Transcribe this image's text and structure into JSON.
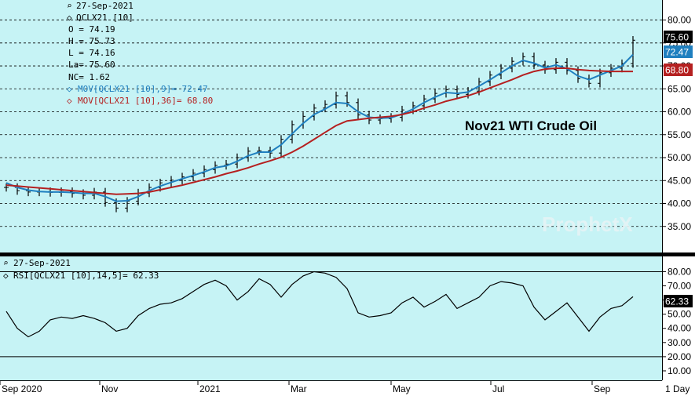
{
  "colors": {
    "panel_bg": "#c6f3f5",
    "price_bar": "#000000",
    "ma_fast": "#1f7fbf",
    "ma_slow": "#b52020",
    "rsi_line": "#000000",
    "last_badge_bg": "#000000",
    "ma_fast_badge_bg": "#1f7fbf",
    "ma_slow_badge_bg": "#b52020"
  },
  "header": {
    "date": "27-Sep-2021",
    "symbol": "QCLX21 [10]",
    "open": "O = 74.19",
    "high": "H = 75.73",
    "low": "L = 74.16",
    "last": "La= 75.60",
    "net_change": "NC= 1.62",
    "ma_fast": "MOV[QCLX21 [10],9]= 72.47",
    "ma_slow": "MOV[QCLX21 [10],36]= 68.80"
  },
  "chart_title": "Nov21 WTI Crude Oil",
  "watermark": "ProphetX",
  "badges": {
    "last": "75.60",
    "ma_fast": "72.47",
    "ma_slow": "68.80"
  },
  "rsi_header": {
    "date": "27-Sep-2021",
    "label": "RSI[QCLX21 [10],14,5]= 62.33"
  },
  "rsi_badge": "62.33",
  "x_axis_labels": [
    "Sep 2020",
    "Nov",
    "2021",
    "Mar",
    "May",
    "Jul",
    "Sep",
    "1 Day"
  ],
  "chart_data": [
    {
      "type": "line",
      "title": "Nov21 WTI Crude Oil",
      "ylim": [
        30,
        83
      ],
      "y_ticks": [
        35,
        40,
        45,
        50,
        55,
        60,
        65,
        70,
        75,
        80
      ],
      "x_months": [
        0,
        1,
        2,
        3,
        4,
        5,
        6,
        7,
        8,
        9,
        10,
        11,
        12,
        13,
        14,
        15,
        16,
        17,
        18,
        19,
        20,
        21,
        22,
        23,
        24,
        25,
        26,
        27,
        28,
        29,
        30,
        31,
        32,
        33,
        34,
        35,
        36,
        37,
        38,
        39,
        40,
        41,
        42,
        43,
        44,
        45,
        46,
        47,
        48,
        49,
        50,
        51,
        52,
        53,
        54,
        55,
        56,
        57
      ],
      "series": [
        {
          "name": "QCLX21 [10]",
          "style": "price_bars",
          "values": [
            43.5,
            42.8,
            42.5,
            42.6,
            42.4,
            42.6,
            42.2,
            41.8,
            42.5,
            40.2,
            39.0,
            40.5,
            42.3,
            43.5,
            44.5,
            45.1,
            45.8,
            46.6,
            47.4,
            48.3,
            48.6,
            50.0,
            51.4,
            51.5,
            51.0,
            54.0,
            57.2,
            59.0,
            60.8,
            61.6,
            63.5,
            62.0,
            59.3,
            58.2,
            58.5,
            58.8,
            60.4,
            61.3,
            62.8,
            64.0,
            64.8,
            63.8,
            64.5,
            66.5,
            68.0,
            69.5,
            71.0,
            72.0,
            70.2,
            69.2,
            70.8,
            69.0,
            67.2,
            66.2,
            68.5,
            69.5,
            70.5,
            75.6
          ]
        },
        {
          "name": "MOV[QCLX21 [10],9]",
          "style": "line",
          "values": [
            44.5,
            43.5,
            42.9,
            42.6,
            42.5,
            42.5,
            42.4,
            42.2,
            42.2,
            41.5,
            40.5,
            40.6,
            41.5,
            42.8,
            43.8,
            44.6,
            45.4,
            46.1,
            46.9,
            47.8,
            48.2,
            49.2,
            50.4,
            51.2,
            51.2,
            52.8,
            55.2,
            57.5,
            59.4,
            60.6,
            62.0,
            61.8,
            60.0,
            58.8,
            58.6,
            58.7,
            59.5,
            60.6,
            62.0,
            63.2,
            64.2,
            64.0,
            64.3,
            65.6,
            67.0,
            68.5,
            70.0,
            71.2,
            70.6,
            69.6,
            70.2,
            69.4,
            67.8,
            67.0,
            68.0,
            69.0,
            70.0,
            72.47
          ]
        },
        {
          "name": "MOV[QCLX21 [10],36]",
          "style": "line",
          "values": [
            44.0,
            43.8,
            43.6,
            43.4,
            43.2,
            43.0,
            42.8,
            42.6,
            42.4,
            42.2,
            42.0,
            42.1,
            42.2,
            42.5,
            43.0,
            43.5,
            44.0,
            44.6,
            45.2,
            45.8,
            46.5,
            47.1,
            47.8,
            48.6,
            49.3,
            50.1,
            51.2,
            52.5,
            54.0,
            55.5,
            57.0,
            58.0,
            58.3,
            58.6,
            58.8,
            59.0,
            59.4,
            60.0,
            60.8,
            61.5,
            62.3,
            62.9,
            63.5,
            64.3,
            65.2,
            66.1,
            67.0,
            68.0,
            68.8,
            69.3,
            69.5,
            69.5,
            69.2,
            69.0,
            68.9,
            68.8,
            68.8,
            68.8
          ]
        }
      ]
    },
    {
      "type": "line",
      "title": "RSI[QCLX21 [10],14,5]",
      "ylim": [
        5,
        88
      ],
      "y_ticks": [
        10,
        20,
        30,
        40,
        50,
        60,
        70,
        80
      ],
      "reference_lines": [
        20,
        80
      ],
      "series": [
        {
          "name": "RSI[QCLX21 [10],14,5]",
          "values": [
            52,
            40,
            34,
            38,
            46,
            48,
            47,
            49,
            47,
            44,
            38,
            40,
            49,
            54,
            57,
            58,
            61,
            66,
            71,
            74,
            70,
            60,
            66,
            75,
            71,
            62,
            71,
            77,
            80,
            79,
            76,
            68,
            51,
            48,
            49,
            51,
            58,
            62,
            55,
            59,
            64,
            54,
            58,
            62,
            70,
            73,
            72,
            70,
            55,
            46,
            52,
            58,
            48,
            38,
            48,
            54,
            56,
            62.33
          ]
        }
      ]
    }
  ]
}
